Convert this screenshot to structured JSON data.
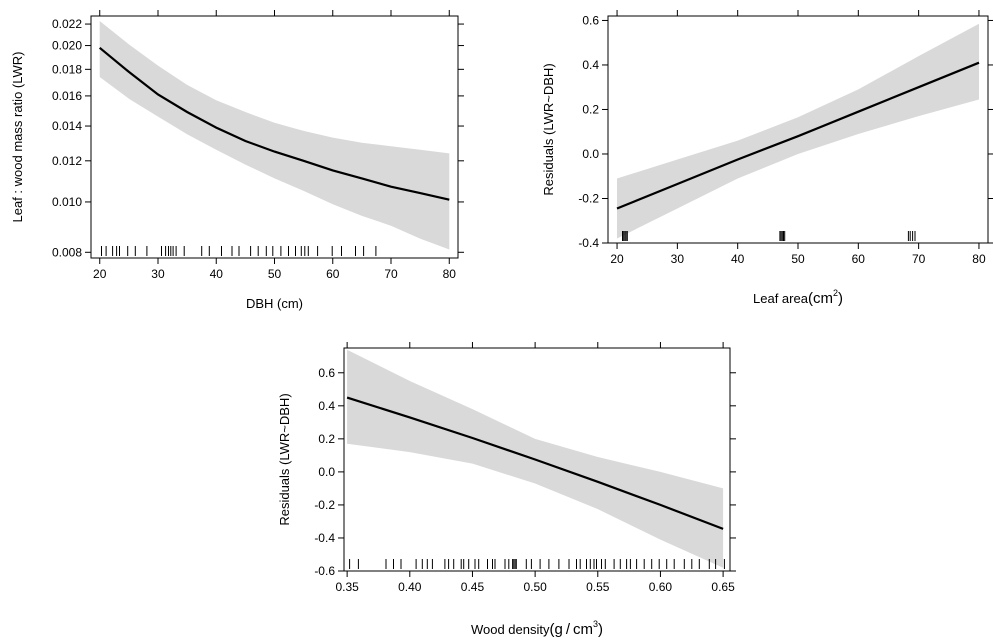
{
  "chart_data": [
    {
      "type": "line",
      "xlabel": "DBH (cm)",
      "ylabel": "Leaf : wood mass ratio (LWR)",
      "y_scale": "log",
      "xlim": [
        18.5,
        81.5
      ],
      "ylim": [
        0.0078,
        0.0228
      ],
      "x_ticks": [
        "20",
        "30",
        "40",
        "50",
        "60",
        "70",
        "80"
      ],
      "y_ticks": [
        "0.008",
        "0.010",
        "0.012",
        "0.014",
        "0.016",
        "0.018",
        "0.020",
        "0.022"
      ],
      "series": [
        {
          "x": [
            20,
            25,
            30,
            35,
            40,
            45,
            50,
            55,
            60,
            65,
            70,
            75,
            80
          ],
          "y": [
            0.0198,
            0.0178,
            0.0161,
            0.0149,
            0.0139,
            0.0131,
            0.0125,
            0.012,
            0.0115,
            0.0111,
            0.0107,
            0.0104,
            0.0101
          ],
          "lower": [
            0.0174,
            0.0158,
            0.0146,
            0.0135,
            0.0126,
            0.0118,
            0.0111,
            0.0105,
            0.0099,
            0.0094,
            0.009,
            0.0085,
            0.0081
          ],
          "upper": [
            0.0223,
            0.0201,
            0.0183,
            0.0168,
            0.0157,
            0.0149,
            0.0142,
            0.0137,
            0.0133,
            0.013,
            0.0128,
            0.0126,
            0.0124
          ]
        }
      ],
      "rug": [
        20.3,
        21.1,
        22.2,
        22.9,
        23.4,
        24.8,
        26.1,
        28.1,
        30.6,
        31.3,
        31.8,
        32.2,
        32.6,
        33.1,
        34.5,
        37.5,
        38.8,
        40.9,
        42.7,
        43.9,
        45.9,
        47.2,
        48.6,
        49.7,
        51.1,
        52.4,
        53.6,
        54.6,
        55.2,
        55.8,
        57.4,
        59.9,
        61.5,
        63.9,
        65.3,
        67.4
      ],
      "grid": false
    },
    {
      "type": "line",
      "xlabel": "Leaf area",
      "xlabel_unit": "(cm",
      "xlabel_sup": "2",
      "xlabel_close": ")",
      "ylabel": "Residuals (LWR~DBH)",
      "xlim": [
        18.5,
        81.5
      ],
      "ylim": [
        -0.4,
        0.62
      ],
      "x_ticks": [
        "20",
        "30",
        "40",
        "50",
        "60",
        "70",
        "80"
      ],
      "y_ticks": [
        "-0.4",
        "-0.2",
        "0.0",
        "0.2",
        "0.4",
        "0.6"
      ],
      "series": [
        {
          "x": [
            20,
            30,
            40,
            50,
            60,
            70,
            80
          ],
          "y": [
            -0.245,
            -0.135,
            -0.025,
            0.08,
            0.19,
            0.3,
            0.41
          ],
          "lower": [
            -0.38,
            -0.245,
            -0.11,
            0.0,
            0.09,
            0.17,
            0.245
          ],
          "upper": [
            -0.11,
            -0.025,
            0.06,
            0.165,
            0.29,
            0.44,
            0.585
          ]
        }
      ],
      "rug": [
        20.9,
        21.1,
        21.3,
        21.5,
        21.7,
        47.0,
        47.2,
        47.4,
        47.6,
        47.8,
        68.3,
        68.6,
        69.0,
        69.4
      ],
      "grid": false
    },
    {
      "type": "line",
      "xlabel": "Wood density",
      "xlabel_unit": "(g / cm",
      "xlabel_sup": "3",
      "xlabel_close": ")",
      "ylabel": "Residuals (LWR~DBH)",
      "xlim": [
        0.3475,
        0.6555
      ],
      "ylim": [
        -0.6,
        0.75
      ],
      "x_ticks": [
        "0.35",
        "0.40",
        "0.45",
        "0.50",
        "0.55",
        "0.60",
        "0.65"
      ],
      "y_ticks": [
        "-0.6",
        "-0.4",
        "-0.2",
        "0.0",
        "0.2",
        "0.4",
        "0.6"
      ],
      "series": [
        {
          "x": [
            0.35,
            0.4,
            0.45,
            0.5,
            0.55,
            0.6,
            0.65
          ],
          "y": [
            0.45,
            0.33,
            0.205,
            0.075,
            -0.06,
            -0.2,
            -0.345
          ],
          "lower": [
            0.17,
            0.12,
            0.05,
            -0.07,
            -0.225,
            -0.41,
            -0.58
          ],
          "upper": [
            0.74,
            0.55,
            0.38,
            0.2,
            0.09,
            0.0,
            -0.1
          ]
        }
      ],
      "rug": [
        0.352,
        0.359,
        0.381,
        0.387,
        0.393,
        0.405,
        0.41,
        0.414,
        0.418,
        0.428,
        0.431,
        0.435,
        0.441,
        0.443,
        0.447,
        0.452,
        0.455,
        0.462,
        0.466,
        0.468,
        0.476,
        0.479,
        0.482,
        0.483,
        0.484,
        0.485,
        0.493,
        0.497,
        0.504,
        0.511,
        0.519,
        0.527,
        0.533,
        0.536,
        0.541,
        0.544,
        0.547,
        0.549,
        0.553,
        0.556,
        0.563,
        0.568,
        0.573,
        0.576,
        0.581,
        0.587,
        0.593,
        0.599,
        0.605,
        0.611,
        0.619,
        0.625,
        0.631,
        0.639,
        0.644,
        0.651
      ],
      "grid": false
    }
  ]
}
